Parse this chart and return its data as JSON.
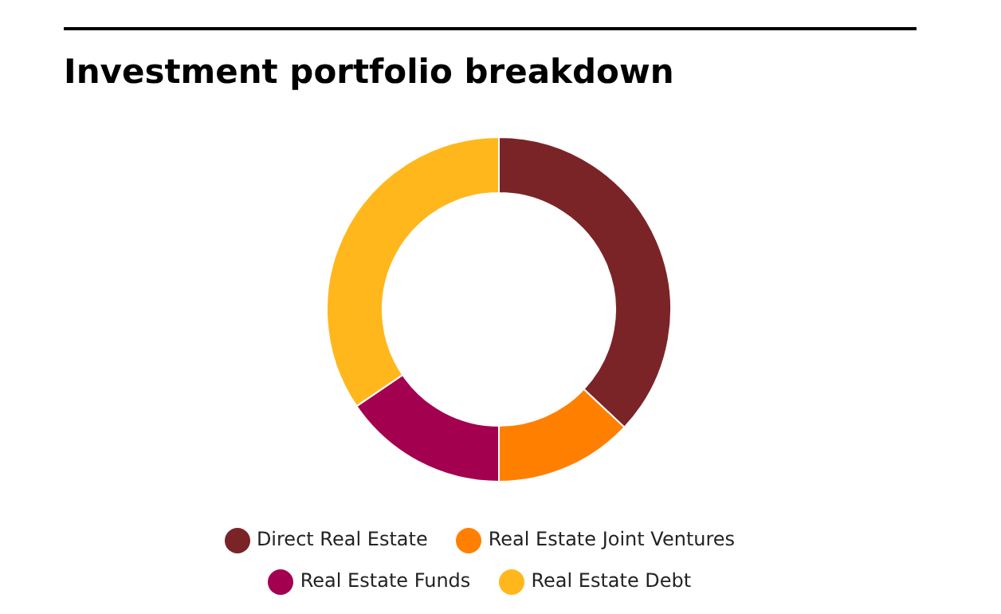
{
  "chart_data": {
    "type": "donut",
    "title": "Investment portfolio breakdown",
    "categories": [
      "Direct Real Estate",
      "Real Estate Joint Ventures",
      "Real Estate Funds",
      "Real Estate Debt"
    ],
    "values": [
      37,
      13,
      15.5,
      34.5
    ],
    "colors": [
      "#7b2428",
      "#ff8000",
      "#a3004f",
      "#ffb71c"
    ],
    "legend": "bottom"
  }
}
